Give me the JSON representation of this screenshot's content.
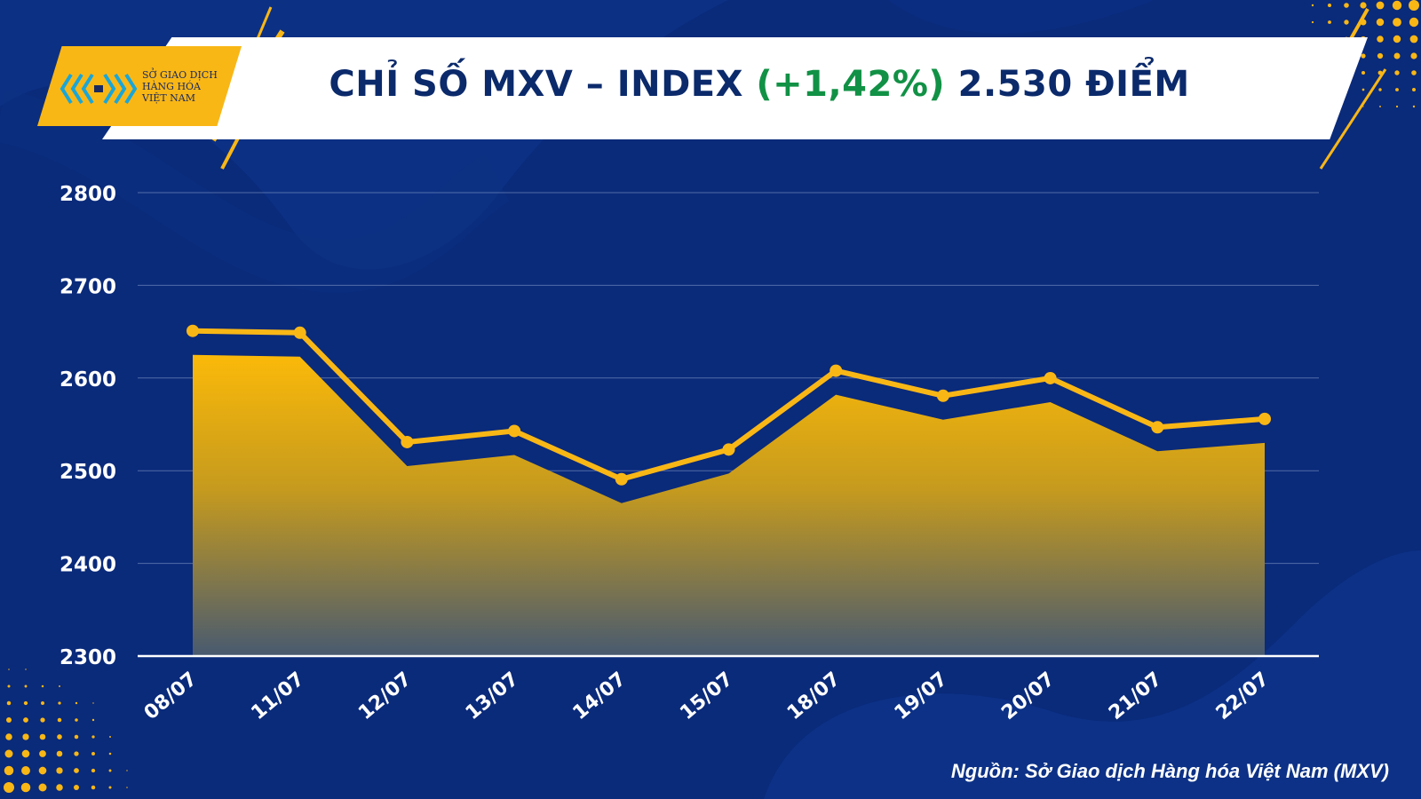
{
  "header": {
    "title_prefix": "CHỈ SỐ MXV – INDEX ",
    "title_change": "(+1,42%)",
    "title_suffix": " 2.530 ĐIỂM"
  },
  "logo": {
    "line1": "SỞ GIAO DỊCH",
    "line2": "HÀNG HÓA",
    "line3": "VIỆT NAM",
    "icon": "mxv-logo-icon"
  },
  "source": "Nguồn: Sở Giao dịch Hàng hóa Việt Nam (MXV)",
  "colors": {
    "background": "#0a2a7a",
    "accent_yellow": "#f9b716",
    "title_navy": "#0b2a6b",
    "change_green": "#119145"
  },
  "chart_data": {
    "type": "area",
    "title": "CHỈ SỐ MXV – INDEX (+1,42%) 2.530 ĐIỂM",
    "xlabel": "",
    "ylabel": "",
    "categories": [
      "08/07",
      "11/07",
      "12/07",
      "13/07",
      "14/07",
      "15/07",
      "18/07",
      "19/07",
      "20/07",
      "21/07",
      "22/07"
    ],
    "values": [
      2625,
      2623,
      2505,
      2517,
      2465,
      2497,
      2582,
      2555,
      2574,
      2521,
      2530
    ],
    "yticks": [
      2300,
      2400,
      2500,
      2600,
      2700,
      2800
    ],
    "ylim": [
      2300,
      2800
    ],
    "grid": true,
    "legend": "none"
  }
}
